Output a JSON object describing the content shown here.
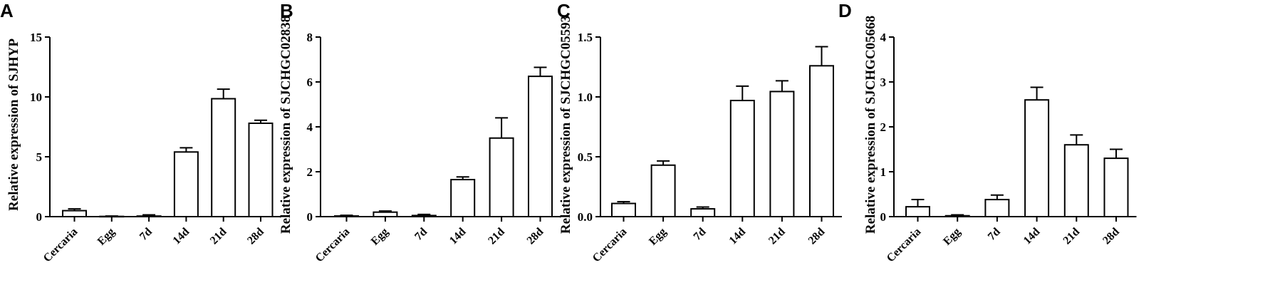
{
  "chart_data": [
    {
      "type": "bar",
      "panel": "A",
      "title": "",
      "xlabel": "",
      "ylabel": "Relative expression of SJHYP",
      "categories": [
        "Cercaria",
        "Egg",
        "7d",
        "14d",
        "21d",
        "28d"
      ],
      "values": [
        0.5,
        0.02,
        0.05,
        5.4,
        9.85,
        7.8
      ],
      "errors": [
        0.15,
        0.03,
        0.1,
        0.35,
        0.8,
        0.25
      ],
      "ylim": [
        0,
        15
      ],
      "yticks": [
        0,
        5,
        10,
        15
      ],
      "grid": false,
      "legend": "none"
    },
    {
      "type": "bar",
      "panel": "B",
      "title": "",
      "xlabel": "",
      "ylabel": "Relative expression of SJCHGC02838",
      "categories": [
        "Cercaria",
        "Egg",
        "7d",
        "14d",
        "21d",
        "28d"
      ],
      "values": [
        0.03,
        0.2,
        0.05,
        1.65,
        3.5,
        6.25
      ],
      "errors": [
        0.03,
        0.05,
        0.05,
        0.12,
        0.9,
        0.4
      ],
      "ylim": [
        0,
        8
      ],
      "yticks": [
        0,
        2,
        4,
        6,
        8
      ],
      "grid": false,
      "legend": "none"
    },
    {
      "type": "bar",
      "panel": "C",
      "title": "",
      "xlabel": "",
      "ylabel": "Relative expression of SJCHGC05593",
      "categories": [
        "Cercaria",
        "Egg",
        "7d",
        "14d",
        "21d",
        "28d"
      ],
      "values": [
        0.11,
        0.43,
        0.065,
        0.97,
        1.045,
        1.26
      ],
      "errors": [
        0.015,
        0.035,
        0.015,
        0.12,
        0.09,
        0.16
      ],
      "ylim": [
        0,
        1.5
      ],
      "yticks": [
        0.0,
        0.5,
        1.0,
        1.5
      ],
      "ytick_labels": [
        "0.0",
        "0.5",
        "1.0",
        "1.5"
      ],
      "grid": false,
      "legend": "none"
    },
    {
      "type": "bar",
      "panel": "D",
      "title": "",
      "xlabel": "",
      "ylabel": "Relative expression of SJCHGC05668",
      "categories": [
        "Cercaria",
        "Egg",
        "7d",
        "14d",
        "21d",
        "28d"
      ],
      "values": [
        0.22,
        0.02,
        0.38,
        2.6,
        1.6,
        1.3
      ],
      "errors": [
        0.16,
        0.02,
        0.1,
        0.28,
        0.22,
        0.2
      ],
      "ylim": [
        0,
        4
      ],
      "yticks": [
        0,
        1,
        2,
        3,
        4
      ],
      "grid": false,
      "legend": "none"
    }
  ]
}
